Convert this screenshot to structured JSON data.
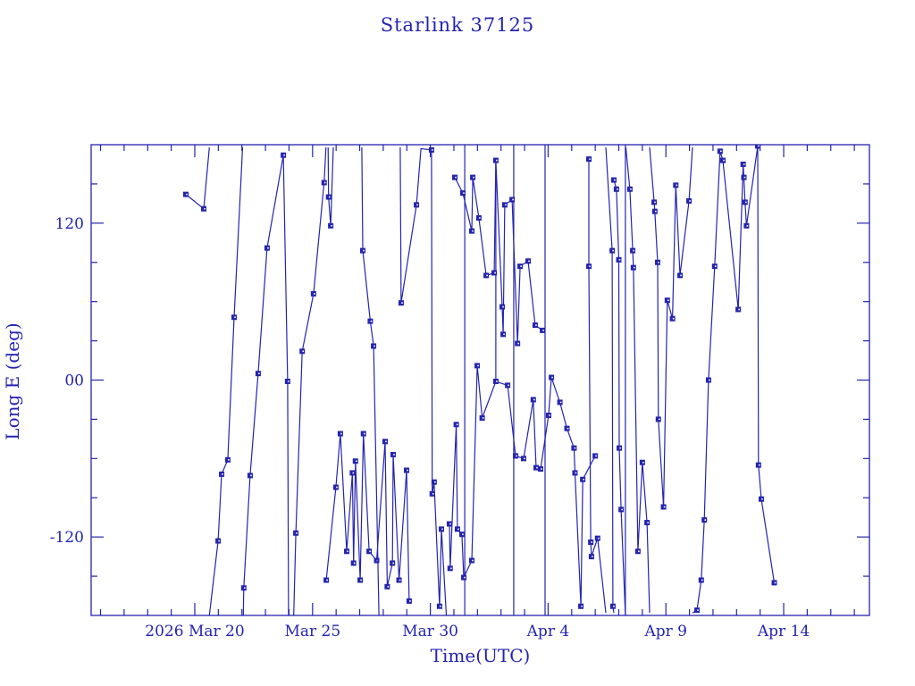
{
  "chart_data": {
    "type": "line",
    "title": "Starlink 37125",
    "xlabel": "Time(UTC)",
    "ylabel": "Long E (deg)",
    "colors": {
      "accent": "#2424b0",
      "background": "#ffffff"
    },
    "x_axis": {
      "unit": "days since 2026 Mar 20 00:00 UTC",
      "xlim_days": [
        -4.4,
        28.64
      ],
      "minor_tick_step_days": 1,
      "major_ticks": [
        {
          "day": 0,
          "label": "2026 Mar 20"
        },
        {
          "day": 5,
          "label": "Mar 25"
        },
        {
          "day": 10,
          "label": "Mar 30"
        },
        {
          "day": 15,
          "label": "Apr  4"
        },
        {
          "day": 20,
          "label": "Apr  9"
        },
        {
          "day": 25,
          "label": "Apr 14"
        }
      ]
    },
    "y_axis": {
      "ylim": [
        -180,
        180
      ],
      "minor_tick_step": 30,
      "major_ticks": [
        {
          "value": 120,
          "label": "120"
        },
        {
          "value": 0,
          "label": "00"
        },
        {
          "value": -120,
          "label": "-120"
        }
      ]
    },
    "legend": null,
    "grid": false,
    "tracks": [
      {
        "points": [
          [
            -0.38,
            142,
            1
          ],
          [
            0.38,
            131,
            1
          ],
          [
            0.62,
            178,
            0
          ]
        ]
      },
      {
        "points": [
          [
            0.62,
            -180,
            0
          ],
          [
            0.99,
            -123,
            1
          ],
          [
            1.14,
            -72,
            1
          ],
          [
            1.4,
            -61,
            1
          ],
          [
            1.67,
            48,
            1
          ],
          [
            2.03,
            178,
            0
          ]
        ]
      },
      {
        "points": [
          [
            2.06,
            -180,
            0
          ],
          [
            2.08,
            -159,
            1
          ],
          [
            2.35,
            -73,
            1
          ],
          [
            2.69,
            5,
            1
          ],
          [
            3.07,
            101,
            1
          ],
          [
            3.76,
            172,
            1
          ],
          [
            3.94,
            -1,
            1
          ],
          [
            3.98,
            -180,
            0
          ]
        ]
      },
      {
        "points": [
          [
            4.2,
            -180,
            0
          ],
          [
            4.29,
            -117,
            1
          ],
          [
            4.56,
            22,
            1
          ],
          [
            5.04,
            66,
            1
          ],
          [
            5.49,
            151,
            1
          ],
          [
            5.57,
            178,
            0
          ]
        ]
      },
      {
        "points": [
          [
            5.66,
            178,
            0
          ],
          [
            5.68,
            140,
            1
          ],
          [
            5.77,
            118,
            1
          ],
          [
            5.88,
            178,
            0
          ]
        ]
      },
      {
        "points": [
          [
            5.58,
            -153,
            1
          ],
          [
            5.99,
            -82,
            1
          ],
          [
            6.18,
            -41,
            1
          ],
          [
            6.45,
            -131,
            1
          ],
          [
            6.69,
            -71,
            1
          ],
          [
            6.74,
            -140,
            1
          ],
          [
            6.82,
            -62,
            1
          ],
          [
            7.02,
            -153,
            1
          ],
          [
            7.16,
            -41,
            1
          ],
          [
            7.4,
            -131,
            1
          ],
          [
            7.72,
            -138,
            1
          ],
          [
            8.08,
            -47,
            1
          ],
          [
            8.17,
            -158,
            1
          ],
          [
            8.39,
            -140,
            1
          ],
          [
            8.42,
            -57,
            1
          ],
          [
            8.67,
            -153,
            1
          ],
          [
            8.99,
            -69,
            1
          ],
          [
            9.1,
            -169,
            1
          ]
        ]
      },
      {
        "points": [
          [
            7.09,
            178,
            0
          ],
          [
            7.13,
            99,
            1
          ],
          [
            7.45,
            45,
            1
          ],
          [
            7.59,
            26,
            1
          ],
          [
            7.82,
            -180,
            0
          ]
        ]
      },
      {
        "points": [
          [
            8.72,
            178,
            0
          ],
          [
            8.76,
            59,
            1
          ],
          [
            9.41,
            134,
            1
          ],
          [
            9.6,
            177,
            0
          ],
          [
            10.05,
            176,
            1
          ],
          [
            10.08,
            -87,
            1
          ],
          [
            10.16,
            -78,
            1
          ],
          [
            10.39,
            -173,
            1
          ],
          [
            10.47,
            -114,
            1
          ],
          [
            10.68,
            -180,
            0
          ]
        ]
      },
      {
        "points": [
          [
            10.81,
            -110,
            1
          ],
          [
            10.84,
            -144,
            1
          ],
          [
            11.1,
            -34,
            1
          ],
          [
            11.15,
            -114,
            1
          ],
          [
            11.34,
            -118,
            1
          ],
          [
            11.42,
            -151,
            1
          ],
          [
            11.76,
            -138,
            1
          ],
          [
            11.99,
            11,
            1
          ],
          [
            12.2,
            -29,
            1
          ],
          [
            12.78,
            -1,
            1
          ],
          [
            13.28,
            -4,
            1
          ],
          [
            13.62,
            -58,
            1
          ],
          [
            13.96,
            -60,
            1
          ],
          [
            14.37,
            -15,
            1
          ],
          [
            14.49,
            -67,
            1
          ],
          [
            14.68,
            -68,
            1
          ],
          [
            15.02,
            -27,
            1
          ],
          [
            15.14,
            2,
            1
          ],
          [
            15.5,
            -17,
            1
          ],
          [
            15.8,
            -37,
            1
          ],
          [
            16.1,
            -52,
            1
          ],
          [
            16.14,
            -71,
            1
          ],
          [
            16.39,
            -173,
            1
          ],
          [
            16.47,
            -76,
            1
          ],
          [
            17.0,
            -58,
            1
          ]
        ]
      },
      {
        "points": [
          [
            11.04,
            155,
            1
          ],
          [
            11.38,
            143,
            1
          ],
          [
            11.76,
            114,
            1
          ],
          [
            11.8,
            155,
            1
          ],
          [
            12.06,
            124,
            1
          ],
          [
            12.37,
            80,
            1
          ],
          [
            12.71,
            82,
            1
          ],
          [
            12.78,
            168,
            1
          ],
          [
            13.05,
            56,
            1
          ],
          [
            13.09,
            35,
            1
          ],
          [
            13.16,
            134,
            1
          ],
          [
            13.47,
            138,
            1
          ],
          [
            13.7,
            28,
            1
          ],
          [
            13.81,
            87,
            1
          ],
          [
            14.15,
            91,
            1
          ],
          [
            14.45,
            42,
            1
          ],
          [
            14.76,
            38,
            1
          ]
        ]
      },
      {
        "points": [
          [
            16.73,
            169,
            1
          ],
          [
            16.73,
            87,
            1
          ],
          [
            16.81,
            -124,
            1
          ],
          [
            16.84,
            -135,
            1
          ],
          [
            17.1,
            -121,
            1
          ],
          [
            17.45,
            -178,
            0
          ]
        ]
      },
      {
        "points": [
          [
            17.45,
            178,
            0
          ],
          [
            17.72,
            99,
            1
          ],
          [
            17.75,
            -173,
            1
          ],
          [
            17.79,
            -178,
            0
          ]
        ]
      },
      {
        "points": [
          [
            17.79,
            153,
            1
          ],
          [
            17.9,
            146,
            1
          ],
          [
            18.0,
            92,
            1
          ],
          [
            18.02,
            -52,
            1
          ],
          [
            18.1,
            -99,
            1
          ],
          [
            18.28,
            -180,
            0
          ]
        ]
      },
      {
        "points": [
          [
            18.3,
            178,
            0
          ],
          [
            18.47,
            146,
            1
          ],
          [
            18.59,
            99,
            1
          ],
          [
            18.62,
            86,
            1
          ],
          [
            18.81,
            -131,
            1
          ],
          [
            19.0,
            -63,
            1
          ],
          [
            19.2,
            -109,
            1
          ],
          [
            19.31,
            -178,
            0
          ]
        ]
      },
      {
        "points": [
          [
            19.31,
            178,
            0
          ],
          [
            19.5,
            136,
            1
          ],
          [
            19.53,
            129,
            1
          ],
          [
            19.65,
            90,
            1
          ],
          [
            19.68,
            -30,
            1
          ],
          [
            19.9,
            -97,
            1
          ],
          [
            20.06,
            61,
            1
          ],
          [
            20.28,
            47,
            1
          ],
          [
            20.42,
            149,
            1
          ],
          [
            20.6,
            80,
            1
          ],
          [
            20.98,
            137,
            1
          ],
          [
            21.13,
            178,
            0
          ]
        ]
      },
      {
        "points": [
          [
            21.13,
            -178,
            0
          ],
          [
            21.32,
            -176,
            1
          ],
          [
            21.5,
            -153,
            1
          ],
          [
            21.63,
            -107,
            1
          ],
          [
            21.81,
            0,
            1
          ],
          [
            22.07,
            87,
            1
          ],
          [
            22.3,
            175,
            1
          ],
          [
            22.42,
            168,
            1
          ],
          [
            23.07,
            54,
            1
          ],
          [
            23.28,
            165,
            1
          ],
          [
            23.31,
            155,
            1
          ],
          [
            23.36,
            136,
            1
          ],
          [
            23.42,
            118,
            1
          ],
          [
            23.9,
            179,
            1
          ],
          [
            23.93,
            -65,
            1
          ],
          [
            24.05,
            -91,
            1
          ],
          [
            24.6,
            -155,
            1
          ]
        ]
      }
    ],
    "wrap_segments": [
      [
        11.46,
        180,
        -180
      ],
      [
        12.78,
        168,
        -1
      ],
      [
        13.54,
        180,
        -180
      ],
      [
        14.87,
        180,
        -180
      ],
      [
        18.28,
        180,
        -180
      ]
    ]
  }
}
